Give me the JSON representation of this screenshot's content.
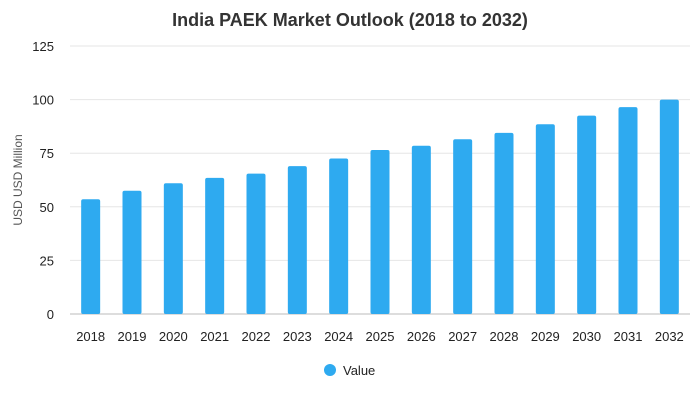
{
  "chart_data": {
    "type": "bar",
    "title": "India PAEK Market Outlook (2018 to 2032)",
    "xlabel": "",
    "ylabel": "USD USD Million",
    "categories": [
      "2018",
      "2019",
      "2020",
      "2021",
      "2022",
      "2023",
      "2024",
      "2025",
      "2026",
      "2027",
      "2028",
      "2029",
      "2030",
      "2031",
      "2032"
    ],
    "series": [
      {
        "name": "Value",
        "color": "#2eaaf0",
        "values": [
          53.5,
          57.5,
          61,
          63.5,
          65.5,
          69,
          72.5,
          76.5,
          78.5,
          81.5,
          84.5,
          88.5,
          92.5,
          96.5,
          100
        ]
      }
    ],
    "ylim": [
      0,
      125
    ],
    "yticks": [
      "0",
      "25",
      "50",
      "75",
      "100",
      "125"
    ],
    "grid": true,
    "legend_position": "bottom-center"
  }
}
